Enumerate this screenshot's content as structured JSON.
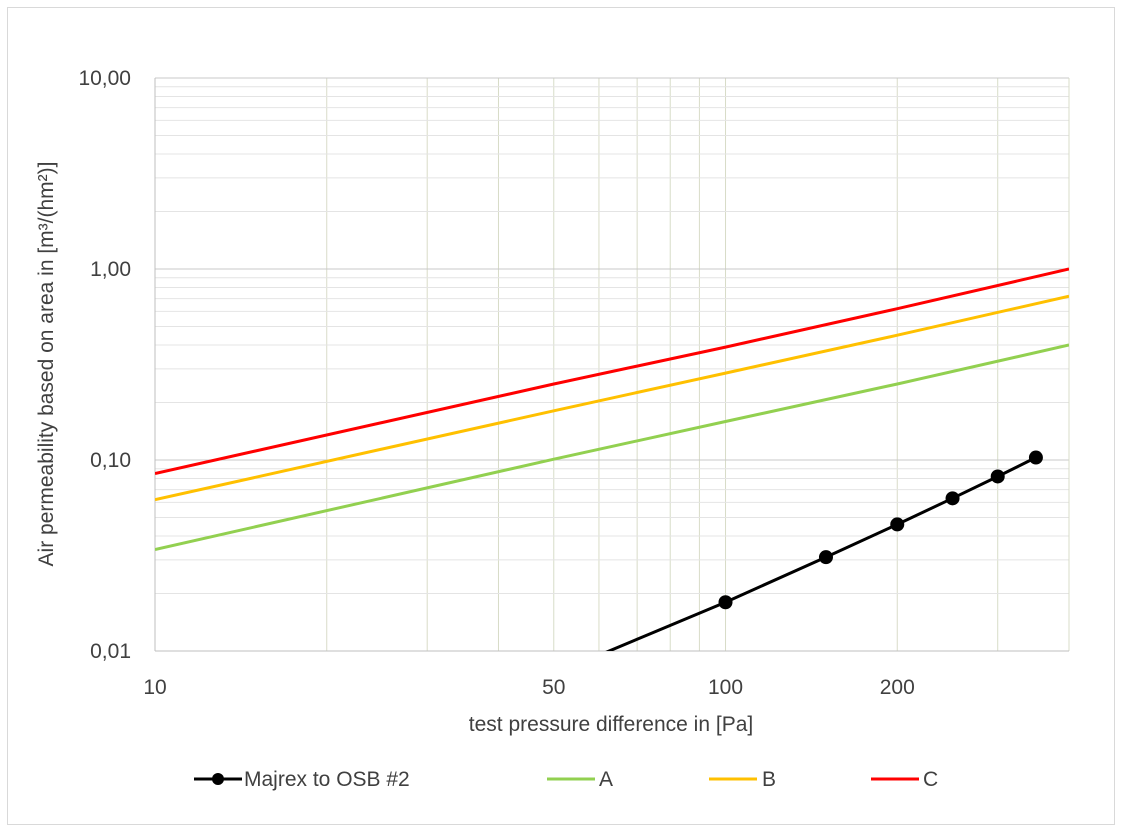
{
  "chart_data": {
    "type": "line",
    "title": "",
    "xlabel": "test pressure difference in [Pa]",
    "ylabel": "Air permeability based on area in [m³/(hm²)]",
    "xscale": "log",
    "yscale": "log",
    "xlim": [
      10,
      400
    ],
    "ylim": [
      0.01,
      10
    ],
    "grid": true,
    "legend_position": "bottom",
    "x_ticks": [
      {
        "value": 10,
        "label": "10"
      },
      {
        "value": 50,
        "label": "50"
      },
      {
        "value": 100,
        "label": "100"
      },
      {
        "value": 200,
        "label": "200"
      }
    ],
    "y_ticks": [
      {
        "value": 0.01,
        "label": "0,01"
      },
      {
        "value": 0.1,
        "label": "0,10"
      },
      {
        "value": 1,
        "label": "1,00"
      },
      {
        "value": 10,
        "label": "10,00"
      }
    ],
    "series": [
      {
        "name": "Majrex to OSB #2",
        "color": "#000000",
        "markers": true,
        "x": [
          100,
          150,
          200,
          250,
          300,
          350
        ],
        "y": [
          0.018,
          0.031,
          0.046,
          0.063,
          0.082,
          0.103
        ],
        "trend_x": [
          60,
          100,
          150,
          200,
          250,
          300,
          350
        ],
        "trend_y": [
          0.0095,
          0.018,
          0.031,
          0.046,
          0.063,
          0.082,
          0.103
        ]
      },
      {
        "name": "A",
        "color": "#92d050",
        "markers": false,
        "x": [
          10,
          50,
          100,
          200,
          400
        ],
        "y": [
          0.034,
          0.101,
          0.159,
          0.25,
          0.4
        ]
      },
      {
        "name": "B",
        "color": "#ffc000",
        "markers": false,
        "x": [
          10,
          50,
          100,
          200,
          400
        ],
        "y": [
          0.062,
          0.181,
          0.285,
          0.45,
          0.72
        ]
      },
      {
        "name": "C",
        "color": "#ff0000",
        "markers": false,
        "x": [
          10,
          50,
          100,
          200,
          400
        ],
        "y": [
          0.085,
          0.25,
          0.39,
          0.62,
          1.0
        ]
      }
    ]
  }
}
